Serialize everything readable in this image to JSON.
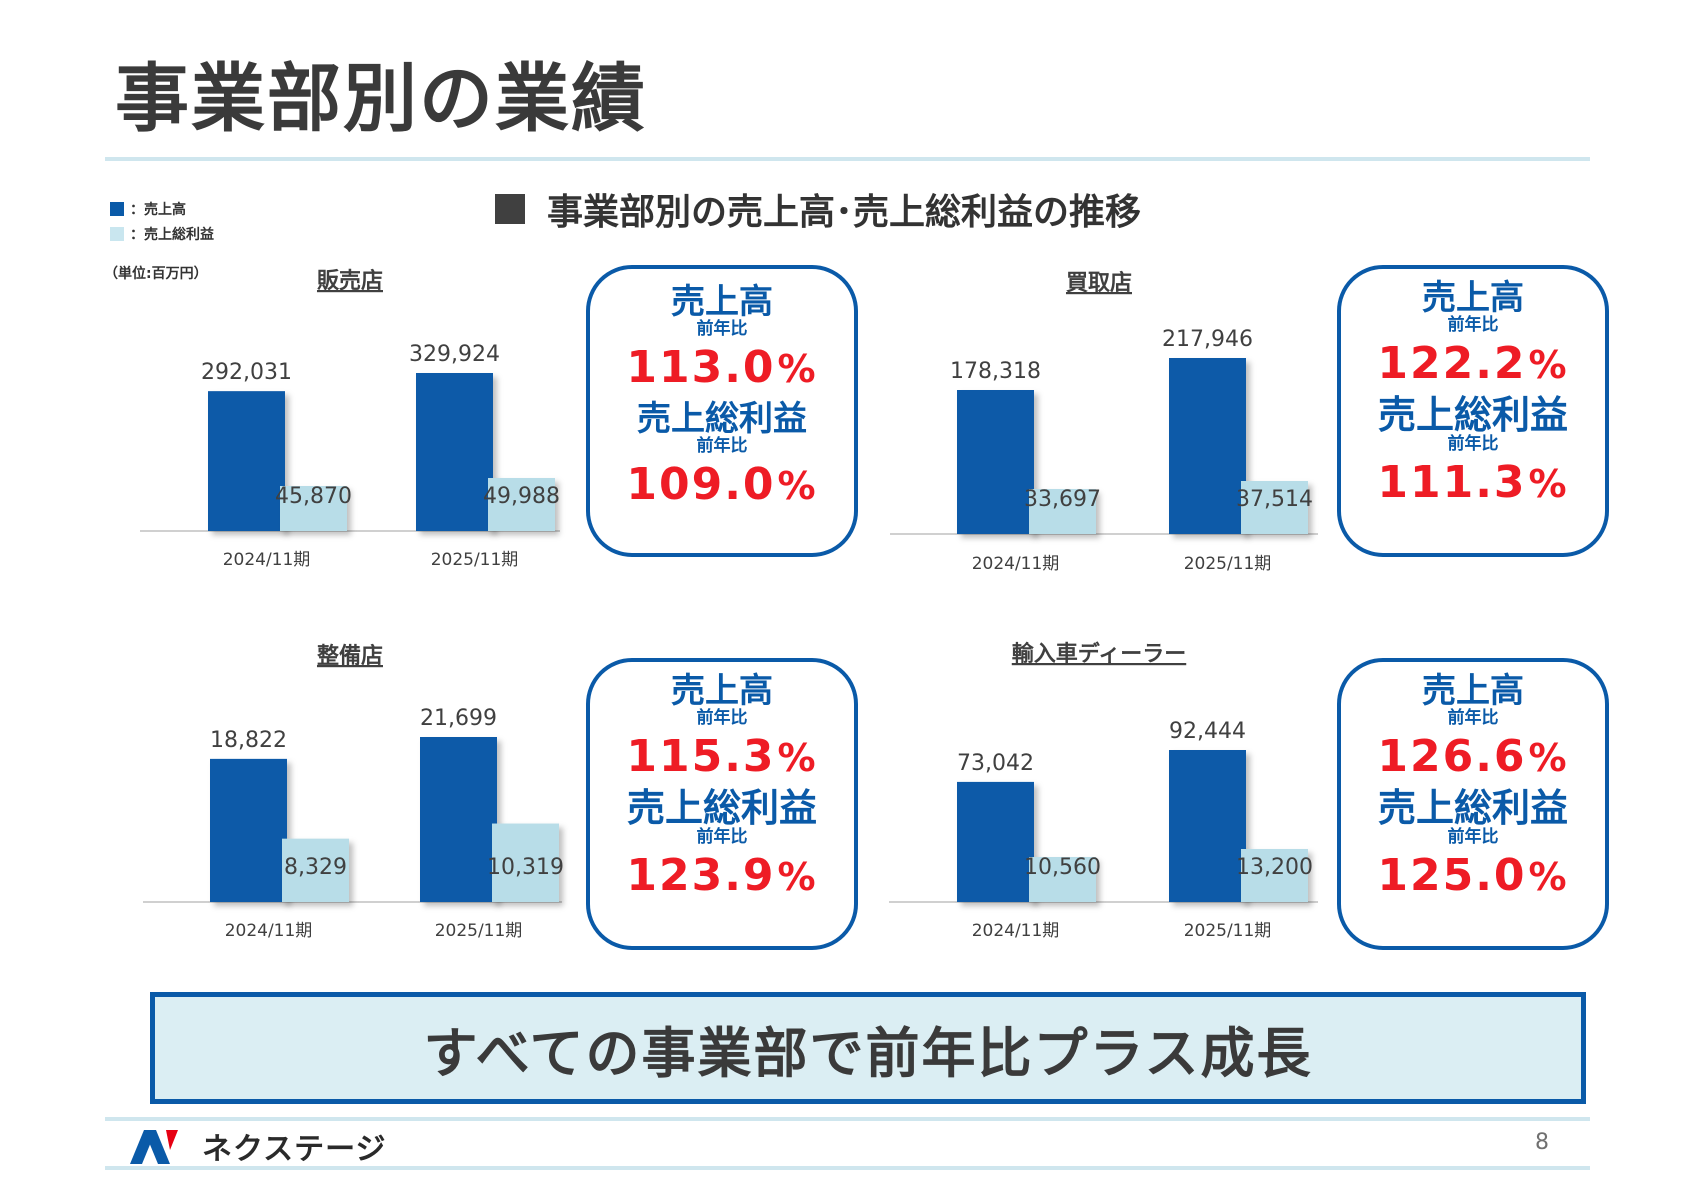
{
  "page_title": "事業部別の業績",
  "section_title": "事業部別の売上高･売上総利益の推移",
  "legend": [
    {
      "label": "：売上高",
      "color": "#0a5aa8"
    },
    {
      "label": "：売上総利益",
      "color": "#c9e6ef"
    }
  ],
  "unit_label": "（単位:百万円）",
  "colors": {
    "sales": "#0a5aa8",
    "gross_profit": "#b8dde8",
    "accent_red": "#ee1c25",
    "border_blue": "#0a5aa8"
  },
  "kpi_labels": {
    "sales": "売上高",
    "gross_profit": "売上総利益",
    "yoy": "前年比"
  },
  "chart_data": [
    {
      "type": "bar",
      "title": "販売店",
      "categories": [
        "2024/11期",
        "2025/11期"
      ],
      "series": [
        {
          "name": "売上高",
          "values": [
            292031,
            329924
          ],
          "labels": [
            "292,031",
            "329,924"
          ]
        },
        {
          "name": "売上総利益",
          "values": [
            45870,
            49988
          ],
          "labels": [
            "45,870",
            "49,988"
          ]
        }
      ],
      "yoy_sales": "113.0",
      "yoy_gross": "109.0"
    },
    {
      "type": "bar",
      "title": "買取店",
      "categories": [
        "2024/11期",
        "2025/11期"
      ],
      "series": [
        {
          "name": "売上高",
          "values": [
            178318,
            217946
          ],
          "labels": [
            "178,318",
            "217,946"
          ]
        },
        {
          "name": "売上総利益",
          "values": [
            33697,
            37514
          ],
          "labels": [
            "33,697",
            "37,514"
          ]
        }
      ],
      "yoy_sales": "122.2",
      "yoy_gross": "111.3"
    },
    {
      "type": "bar",
      "title": "整備店",
      "categories": [
        "2024/11期",
        "2025/11期"
      ],
      "series": [
        {
          "name": "売上高",
          "values": [
            18822,
            21699
          ],
          "labels": [
            "18,822",
            "21,699"
          ]
        },
        {
          "name": "売上総利益",
          "values": [
            8329,
            10319
          ],
          "labels": [
            "8,329",
            "10,319"
          ]
        }
      ],
      "yoy_sales": "115.3",
      "yoy_gross": "123.9"
    },
    {
      "type": "bar",
      "title": "輸入車ディーラー",
      "categories": [
        "2024/11期",
        "2025/11期"
      ],
      "series": [
        {
          "name": "売上高",
          "values": [
            73042,
            92444
          ],
          "labels": [
            "73,042",
            "92,444"
          ]
        },
        {
          "name": "売上総利益",
          "values": [
            10560,
            13200
          ],
          "labels": [
            "10,560",
            "13,200"
          ]
        }
      ],
      "yoy_sales": "126.6",
      "yoy_gross": "125.0"
    }
  ],
  "pct_sign": "%",
  "banner_text": "すべての事業部で前年比プラス成長",
  "logo_text": "ネクステージ",
  "page_number": "8"
}
